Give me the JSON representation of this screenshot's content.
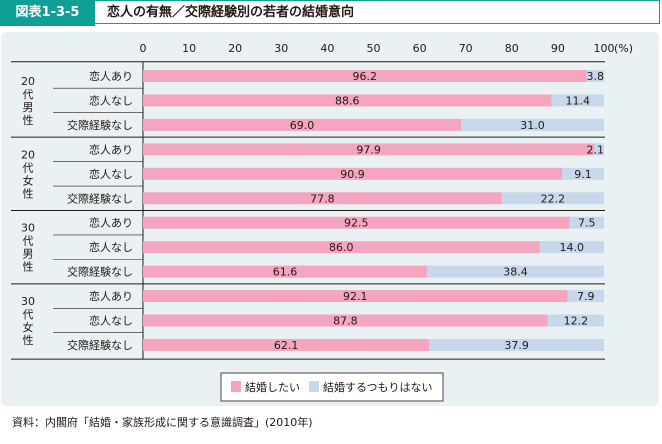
{
  "figure": {
    "label": "図表1-3-5",
    "title": "恋人の有無／交際経験別の若者の結婚意向",
    "source": "資料：内閣府「結婚・家族形成に関する意識調査」(2010年)"
  },
  "colors": {
    "accent": "#0f9f95",
    "panel_bg": "#eaf1f4",
    "marry": "#f5a5bf",
    "not_marry": "#c7d8ec"
  },
  "chart_data": {
    "type": "bar",
    "orientation": "horizontal",
    "stacked": true,
    "xlim": [
      0,
      100
    ],
    "x_ticks": [
      "0",
      "10",
      "20",
      "30",
      "40",
      "50",
      "60",
      "70",
      "80",
      "90",
      "100"
    ],
    "x_unit": "(%)",
    "grid": false,
    "legend_position": "bottom",
    "groups": [
      {
        "label": [
          "20",
          "代",
          "男",
          "性"
        ],
        "rows": [
          {
            "category": "恋人あり",
            "values": [
              96.2,
              3.8
            ],
            "labels": [
              "96.2",
              "3.8"
            ]
          },
          {
            "category": "恋人なし",
            "values": [
              88.6,
              11.4
            ],
            "labels": [
              "88.6",
              "11.4"
            ]
          },
          {
            "category": "交際経験なし",
            "values": [
              69.0,
              31.0
            ],
            "labels": [
              "69.0",
              "31.0"
            ]
          }
        ]
      },
      {
        "label": [
          "20",
          "代",
          "女",
          "性"
        ],
        "rows": [
          {
            "category": "恋人あり",
            "values": [
              97.9,
              2.1
            ],
            "labels": [
              "97.9",
              "2.1"
            ]
          },
          {
            "category": "恋人なし",
            "values": [
              90.9,
              9.1
            ],
            "labels": [
              "90.9",
              "9.1"
            ]
          },
          {
            "category": "交際経験なし",
            "values": [
              77.8,
              22.2
            ],
            "labels": [
              "77.8",
              "22.2"
            ]
          }
        ]
      },
      {
        "label": [
          "30",
          "代",
          "男",
          "性"
        ],
        "rows": [
          {
            "category": "恋人あり",
            "values": [
              92.5,
              7.5
            ],
            "labels": [
              "92.5",
              "7.5"
            ]
          },
          {
            "category": "恋人なし",
            "values": [
              86.0,
              14.0
            ],
            "labels": [
              "86.0",
              "14.0"
            ]
          },
          {
            "category": "交際経験なし",
            "values": [
              61.6,
              38.4
            ],
            "labels": [
              "61.6",
              "38.4"
            ]
          }
        ]
      },
      {
        "label": [
          "30",
          "代",
          "女",
          "性"
        ],
        "rows": [
          {
            "category": "恋人あり",
            "values": [
              92.1,
              7.9
            ],
            "labels": [
              "92.1",
              "7.9"
            ]
          },
          {
            "category": "恋人なし",
            "values": [
              87.8,
              12.2
            ],
            "labels": [
              "87.8",
              "12.2"
            ]
          },
          {
            "category": "交際経験なし",
            "values": [
              62.1,
              37.9
            ],
            "labels": [
              "62.1",
              "37.9"
            ]
          }
        ]
      }
    ],
    "series": [
      {
        "name": "結婚したい",
        "color": "#f5a5bf"
      },
      {
        "name": "結婚するつもりはない",
        "color": "#c7d8ec"
      }
    ]
  }
}
